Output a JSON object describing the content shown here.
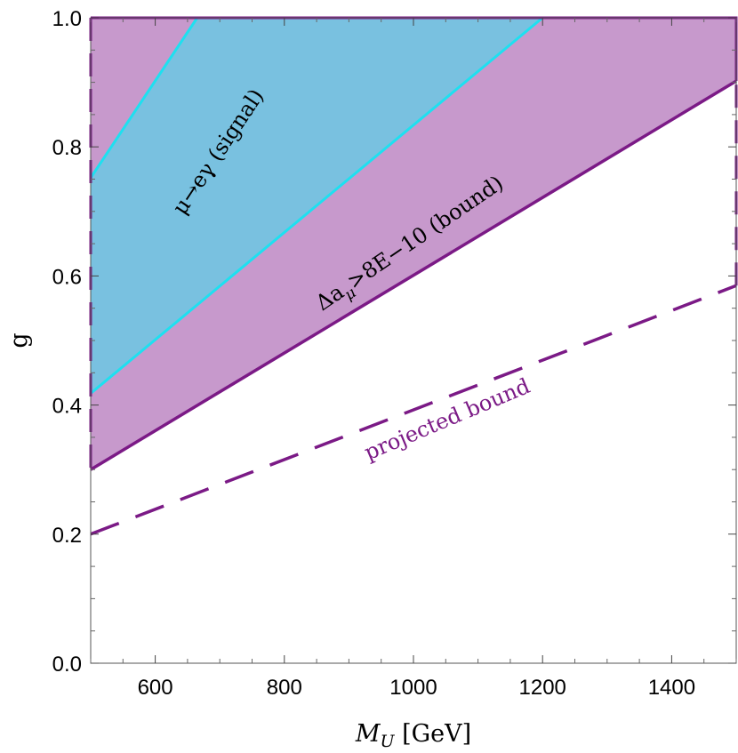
{
  "chart_data": {
    "type": "area",
    "xlabel": "M",
    "xlabel_sub": "U",
    "xlabel_unit": " [GeV]",
    "ylabel": "g",
    "xlim": [
      500,
      1500
    ],
    "ylim": [
      0.0,
      1.0
    ],
    "x_ticks": [
      600,
      800,
      1000,
      1200,
      1400
    ],
    "x_tick_labels": [
      "600",
      "800",
      "1000",
      "1200",
      "1400"
    ],
    "y_ticks": [
      0.0,
      0.2,
      0.4,
      0.6,
      0.8,
      1.0
    ],
    "y_tick_labels": [
      "0.0",
      "0.2",
      "0.4",
      "0.6",
      "0.8",
      "1.0"
    ],
    "series": [
      {
        "name": "Δaμ>8E-10 (bound)",
        "style": "solid",
        "color": "#7b1a86",
        "fill": "#c799cc",
        "points": [
          [
            500,
            0.3
          ],
          [
            1500,
            0.902
          ]
        ]
      },
      {
        "name": "μ→eγ (signal)",
        "style": "solid",
        "color": "#1ee0f0",
        "fill": "#79c1e0",
        "upper_edge": [
          [
            500,
            0.752
          ],
          [
            665,
            1.0
          ]
        ],
        "lower_edge": [
          [
            500,
            0.418
          ],
          [
            1200,
            1.0
          ]
        ]
      },
      {
        "name": "projected bound",
        "style": "dashed",
        "color": "#7b1a86",
        "points": [
          [
            500,
            0.2
          ],
          [
            1500,
            0.585
          ]
        ]
      }
    ],
    "annotations": {
      "signal": "μ→eγ (signal)",
      "bound_delta": "Δa",
      "bound_sub": "μ",
      "bound_rest": ">8E−10 (bound)",
      "projected": "projected bound"
    },
    "colors": {
      "bound_fill": "#c799cc",
      "bound_line": "#7b1a86",
      "signal_fill": "#79c1e0",
      "signal_line": "#1ee0f0",
      "projected_line": "#7b1a86",
      "projected_text": "#7b1a86"
    }
  }
}
